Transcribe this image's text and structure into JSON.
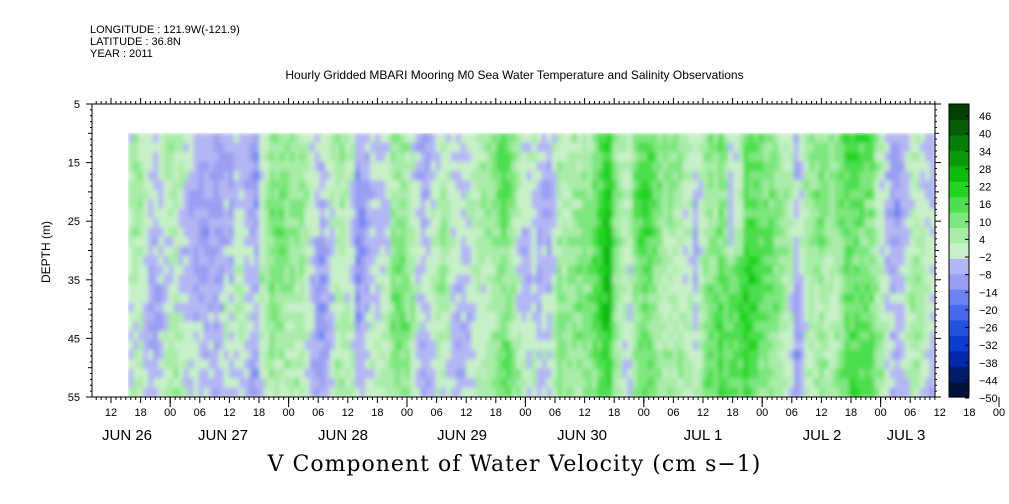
{
  "header": {
    "longitude": "LONGITUDE : 121.9W(-121.9)",
    "latitude": "LATITUDE : 36.8N",
    "year": "YEAR : 2011"
  },
  "chart_data": {
    "type": "heatmap",
    "title": "Hourly Gridded MBARI Mooring M0 Sea Water Temperature and Salinity Observations",
    "variable_title": "V Component of Water Velocity (cm s−1)",
    "ylabel": "DEPTH (m)",
    "ylim": [
      5,
      55
    ],
    "y_inverted": true,
    "y_ticks": [
      "5",
      "15",
      "25",
      "35",
      "45",
      "55"
    ],
    "data_depth_range": [
      10,
      55
    ],
    "x_ticks": [
      "12",
      "18",
      "00",
      "06",
      "12",
      "18",
      "00",
      "06",
      "12",
      "18",
      "00",
      "06",
      "12",
      "18",
      "00",
      "06",
      "12",
      "18",
      "00",
      "06",
      "12",
      "18",
      "00",
      "06",
      "12",
      "18",
      "00",
      "06",
      "12",
      "18",
      "00",
      "06"
    ],
    "x_dates": [
      "JUN 26",
      "JUN 27",
      "JUN 28",
      "JUN 29",
      "JUN 30",
      "JUL  1",
      "JUL  2",
      "JUL  3"
    ],
    "colorbar": {
      "labels": [
        "46",
        "40",
        "34",
        "28",
        "22",
        "16",
        "10",
        "4",
        "−2",
        "−8",
        "−14",
        "−20",
        "−26",
        "−32",
        "−38",
        "−44",
        "−50"
      ],
      "range": [
        -50,
        52
      ],
      "colors": [
        "#00123a",
        "#001a6e",
        "#0028a8",
        "#0a3cd0",
        "#2452e0",
        "#4668ea",
        "#6c82f0",
        "#9a9ef2",
        "#b4b6f4",
        "#c8f0c8",
        "#a8eca8",
        "#7ee67e",
        "#4ede4e",
        "#20d420",
        "#0cbc0c",
        "#089a08",
        "#067c06",
        "#045c04",
        "#034003"
      ]
    },
    "grid": false
  }
}
